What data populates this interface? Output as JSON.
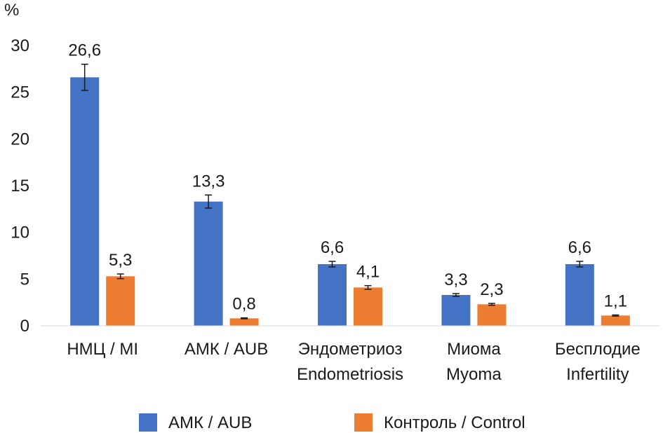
{
  "chart_data": {
    "type": "bar",
    "ylabel": "%",
    "ylim": [
      0,
      30
    ],
    "yticks": [
      0,
      5,
      10,
      15,
      20,
      25,
      30
    ],
    "categories": [
      [
        "НМЦ / MI"
      ],
      [
        "АМК / AUB"
      ],
      [
        "Эндометриоз",
        "Endometriosis"
      ],
      [
        "Миома",
        "Myoma"
      ],
      [
        "Бесплодие",
        "Infertility"
      ]
    ],
    "series": [
      {
        "name": "АМК / AUB",
        "color": "#4472c4",
        "values": [
          26.6,
          13.3,
          6.6,
          3.3,
          6.6
        ],
        "labels": [
          "26,6",
          "13,3",
          "6,6",
          "3,3",
          "6,6"
        ],
        "errors": [
          1.4,
          0.7,
          0.3,
          0.15,
          0.3
        ]
      },
      {
        "name": "Контроль / Control",
        "color": "#ed7d31",
        "values": [
          5.3,
          0.8,
          4.1,
          2.3,
          1.1
        ],
        "labels": [
          "5,3",
          "0,8",
          "4,1",
          "2,3",
          "1,1"
        ],
        "errors": [
          0.25,
          0.05,
          0.2,
          0.1,
          0.06
        ]
      }
    ],
    "legend_position": "bottom"
  }
}
